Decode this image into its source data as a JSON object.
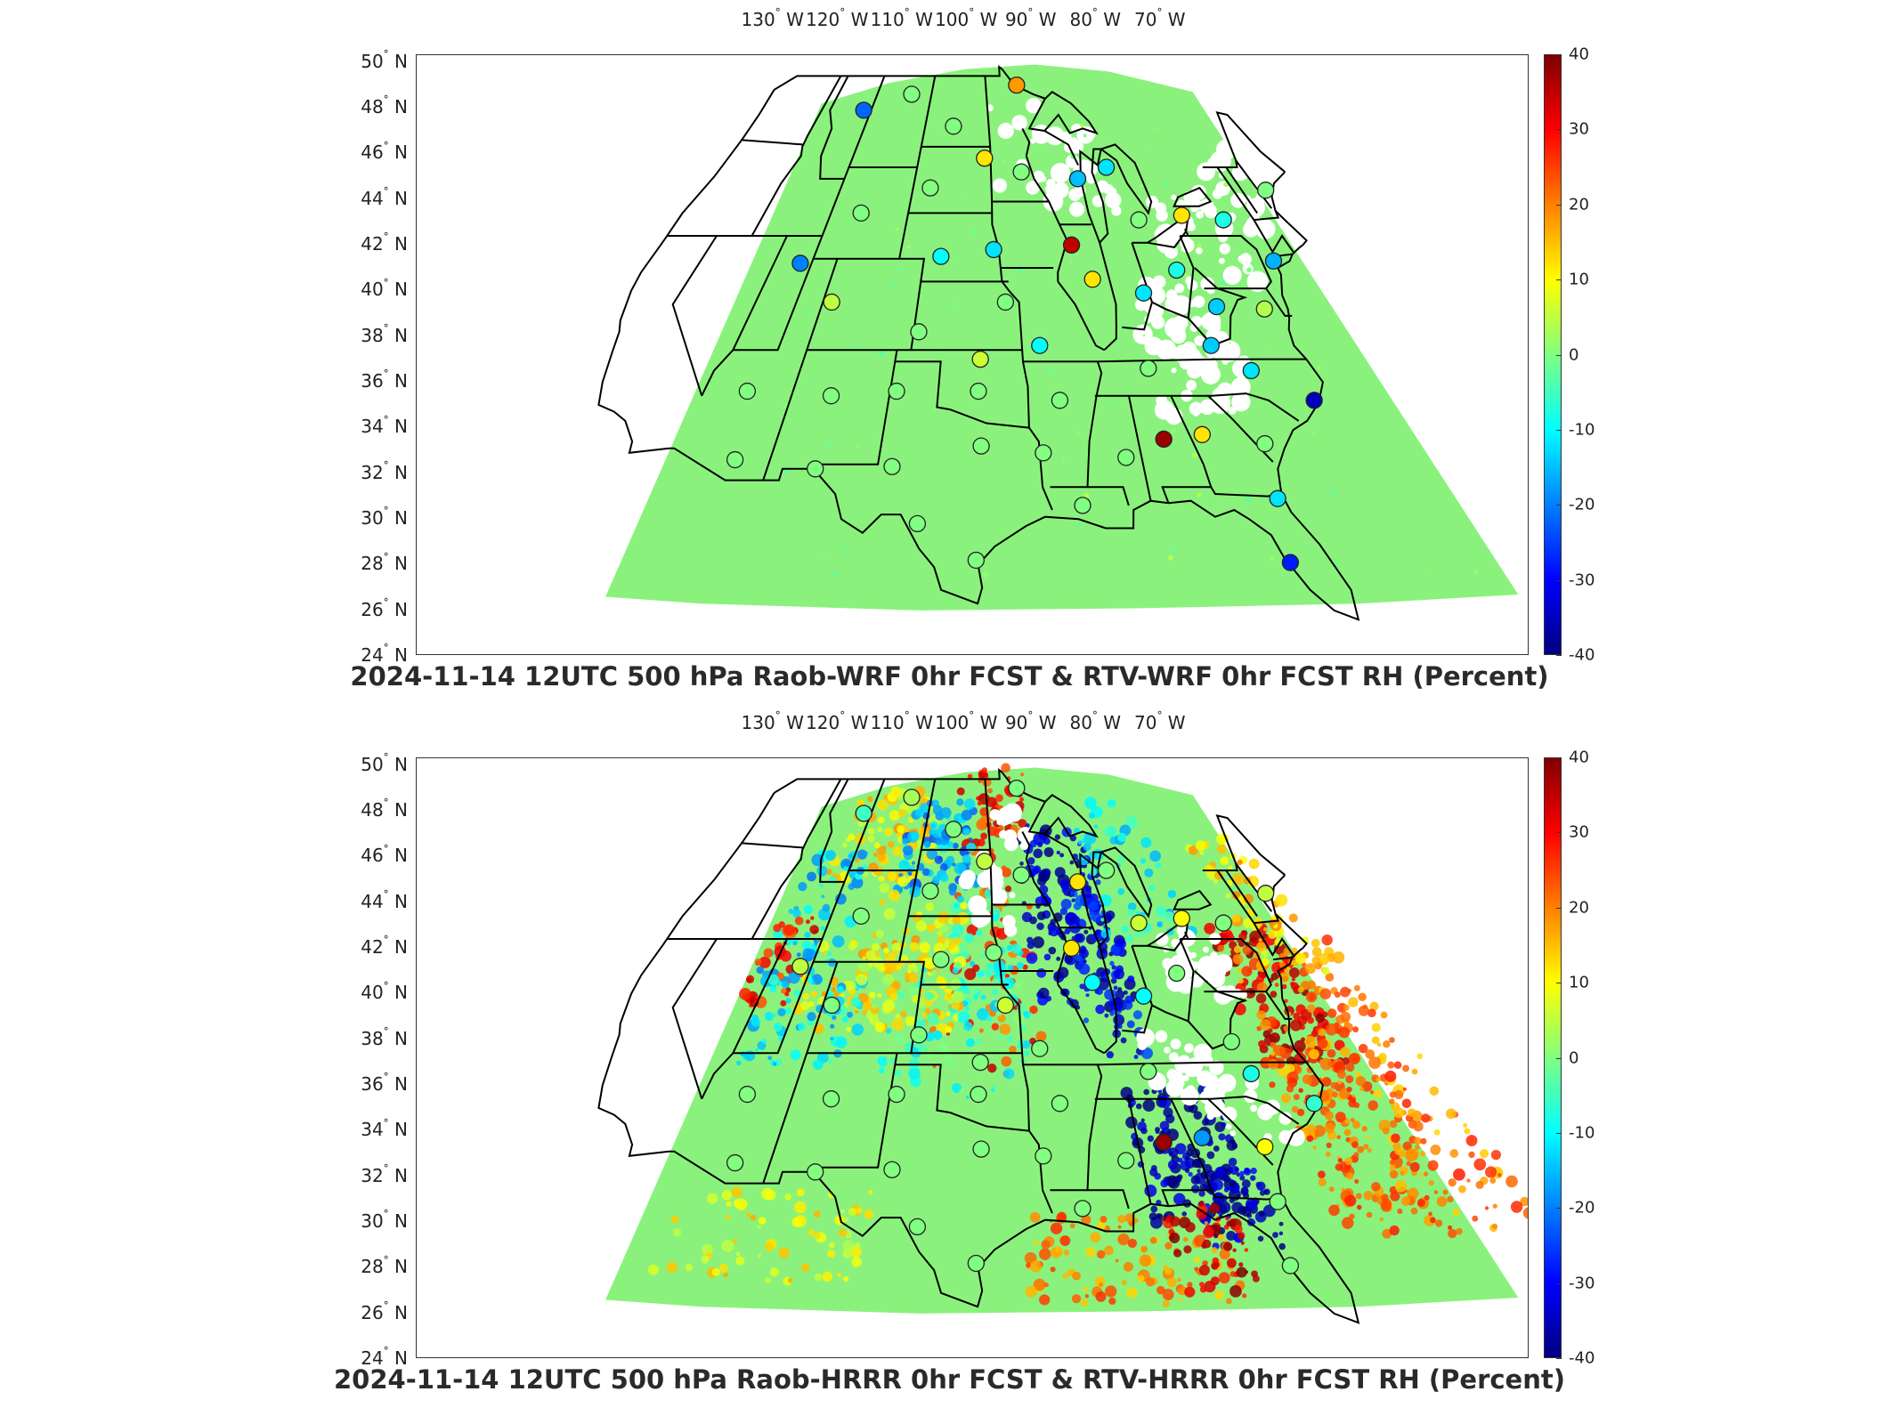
{
  "panels": [
    {
      "title": "2024-11-14 12UTC 500 hPa Raob-WRF 0hr FCST & RTV-WRF 0hr FCST RH (Percent)",
      "field": "smooth",
      "stations": [
        {
          "lon": -111.9,
          "lat": 47.5,
          "value": -22
        },
        {
          "lon": -106.6,
          "lat": 48.2,
          "value": 0
        },
        {
          "lon": -93.0,
          "lat": 48.6,
          "value": 18
        },
        {
          "lon": -100.8,
          "lat": 46.8,
          "value": 0
        },
        {
          "lon": -97.2,
          "lat": 45.4,
          "value": 12
        },
        {
          "lon": -93.5,
          "lat": 44.8,
          "value": 0
        },
        {
          "lon": -102.4,
          "lat": 44.1,
          "value": 0
        },
        {
          "lon": -108.3,
          "lat": 43.0,
          "value": 0
        },
        {
          "lon": -88.0,
          "lat": 44.5,
          "value": -15
        },
        {
          "lon": -84.8,
          "lat": 45.0,
          "value": -12
        },
        {
          "lon": -83.5,
          "lat": 42.7,
          "value": 0
        },
        {
          "lon": -89.9,
          "lat": 41.6,
          "value": 35
        },
        {
          "lon": -88.8,
          "lat": 40.1,
          "value": 12
        },
        {
          "lon": -111.9,
          "lat": 40.8,
          "value": -20
        },
        {
          "lon": -100.7,
          "lat": 41.1,
          "value": -10
        },
        {
          "lon": -96.4,
          "lat": 41.4,
          "value": -12
        },
        {
          "lon": -108.4,
          "lat": 39.1,
          "value": 5
        },
        {
          "lon": -101.7,
          "lat": 37.8,
          "value": 0
        },
        {
          "lon": -95.6,
          "lat": 39.1,
          "value": 0
        },
        {
          "lon": -93.4,
          "lat": 37.2,
          "value": -10
        },
        {
          "lon": -97.4,
          "lat": 36.6,
          "value": 6
        },
        {
          "lon": -86.5,
          "lat": 36.2,
          "value": 0
        },
        {
          "lon": -82.0,
          "lat": 40.5,
          "value": -8
        },
        {
          "lon": -85.2,
          "lat": 39.5,
          "value": -12
        },
        {
          "lon": -80.2,
          "lat": 38.9,
          "value": -14
        },
        {
          "lon": -81.8,
          "lat": 37.2,
          "value": -14
        },
        {
          "lon": -79.9,
          "lat": 36.1,
          "value": -12
        },
        {
          "lon": -76.9,
          "lat": 34.8,
          "value": -35
        },
        {
          "lon": -79.5,
          "lat": 42.9,
          "value": 12
        },
        {
          "lon": -76.0,
          "lat": 42.7,
          "value": -8
        },
        {
          "lon": -73.9,
          "lat": 40.9,
          "value": -16
        },
        {
          "lon": -76.8,
          "lat": 38.8,
          "value": 4
        },
        {
          "lon": -70.3,
          "lat": 44.0,
          "value": 0
        },
        {
          "lon": -111.9,
          "lat": 35.2,
          "value": 0
        },
        {
          "lon": -106.6,
          "lat": 35.0,
          "value": 0
        },
        {
          "lon": -102.6,
          "lat": 35.2,
          "value": 0
        },
        {
          "lon": -97.5,
          "lat": 35.2,
          "value": 0
        },
        {
          "lon": -92.5,
          "lat": 34.8,
          "value": 0
        },
        {
          "lon": -111.0,
          "lat": 32.2,
          "value": 0
        },
        {
          "lon": -106.4,
          "lat": 31.8,
          "value": 0
        },
        {
          "lon": -102.2,
          "lat": 31.9,
          "value": 0
        },
        {
          "lon": -97.3,
          "lat": 32.8,
          "value": 0
        },
        {
          "lon": -93.8,
          "lat": 32.5,
          "value": 0
        },
        {
          "lon": -89.2,
          "lat": 32.3,
          "value": 0
        },
        {
          "lon": -86.8,
          "lat": 33.1,
          "value": 38
        },
        {
          "lon": -84.5,
          "lat": 33.3,
          "value": 12
        },
        {
          "lon": -81.1,
          "lat": 32.9,
          "value": 0
        },
        {
          "lon": -92.0,
          "lat": 30.2,
          "value": 0
        },
        {
          "lon": -81.7,
          "lat": 30.5,
          "value": -12
        },
        {
          "lon": -100.5,
          "lat": 29.4,
          "value": 0
        },
        {
          "lon": -97.5,
          "lat": 27.8,
          "value": 0
        },
        {
          "lon": -82.4,
          "lat": 27.7,
          "value": -28
        }
      ]
    },
    {
      "title": "2024-11-14 12UTC 500 hPa Raob-HRRR 0hr FCST & RTV-HRRR 0hr FCST RH (Percent)",
      "field": "noisy",
      "stations": [
        {
          "lon": -111.9,
          "lat": 47.5,
          "value": -5
        },
        {
          "lon": -106.6,
          "lat": 48.2,
          "value": 3
        },
        {
          "lon": -93.0,
          "lat": 48.6,
          "value": 0
        },
        {
          "lon": -100.8,
          "lat": 46.8,
          "value": 0
        },
        {
          "lon": -97.2,
          "lat": 45.4,
          "value": 5
        },
        {
          "lon": -93.5,
          "lat": 44.8,
          "value": 0
        },
        {
          "lon": -102.4,
          "lat": 44.1,
          "value": 0
        },
        {
          "lon": -108.3,
          "lat": 43.0,
          "value": 0
        },
        {
          "lon": -88.0,
          "lat": 44.5,
          "value": 12
        },
        {
          "lon": -84.8,
          "lat": 45.0,
          "value": 0
        },
        {
          "lon": -83.5,
          "lat": 42.7,
          "value": 6
        },
        {
          "lon": -89.9,
          "lat": 41.6,
          "value": 12
        },
        {
          "lon": -88.8,
          "lat": 40.1,
          "value": -10
        },
        {
          "lon": -111.9,
          "lat": 40.8,
          "value": 5
        },
        {
          "lon": -100.7,
          "lat": 41.1,
          "value": 0
        },
        {
          "lon": -96.4,
          "lat": 41.4,
          "value": 0
        },
        {
          "lon": -108.4,
          "lat": 39.1,
          "value": 0
        },
        {
          "lon": -101.7,
          "lat": 37.8,
          "value": 0
        },
        {
          "lon": -95.6,
          "lat": 39.1,
          "value": 6
        },
        {
          "lon": -93.4,
          "lat": 37.2,
          "value": 0
        },
        {
          "lon": -97.4,
          "lat": 36.6,
          "value": 0
        },
        {
          "lon": -86.5,
          "lat": 36.2,
          "value": 0
        },
        {
          "lon": -82.0,
          "lat": 40.5,
          "value": 0
        },
        {
          "lon": -85.2,
          "lat": 39.5,
          "value": -10
        },
        {
          "lon": -80.2,
          "lat": 37.5,
          "value": 0
        },
        {
          "lon": -79.9,
          "lat": 36.1,
          "value": -8
        },
        {
          "lon": -76.9,
          "lat": 34.8,
          "value": -6
        },
        {
          "lon": -79.5,
          "lat": 42.9,
          "value": 10
        },
        {
          "lon": -76.0,
          "lat": 42.7,
          "value": 0
        },
        {
          "lon": -70.3,
          "lat": 44.0,
          "value": 5
        },
        {
          "lon": -111.9,
          "lat": 35.2,
          "value": 0
        },
        {
          "lon": -106.6,
          "lat": 35.0,
          "value": 0
        },
        {
          "lon": -102.6,
          "lat": 35.2,
          "value": 0
        },
        {
          "lon": -97.5,
          "lat": 35.2,
          "value": 0
        },
        {
          "lon": -92.5,
          "lat": 34.8,
          "value": 0
        },
        {
          "lon": -111.0,
          "lat": 32.2,
          "value": 0
        },
        {
          "lon": -106.4,
          "lat": 31.8,
          "value": 0
        },
        {
          "lon": -102.2,
          "lat": 31.9,
          "value": 0
        },
        {
          "lon": -97.3,
          "lat": 32.8,
          "value": 0
        },
        {
          "lon": -93.8,
          "lat": 32.5,
          "value": 0
        },
        {
          "lon": -89.2,
          "lat": 32.3,
          "value": 0
        },
        {
          "lon": -86.8,
          "lat": 33.1,
          "value": 38
        },
        {
          "lon": -84.5,
          "lat": 33.3,
          "value": -18
        },
        {
          "lon": -81.1,
          "lat": 32.9,
          "value": 10
        },
        {
          "lon": -92.0,
          "lat": 30.2,
          "value": 0
        },
        {
          "lon": -81.7,
          "lat": 30.5,
          "value": 0
        },
        {
          "lon": -100.5,
          "lat": 29.4,
          "value": 0
        },
        {
          "lon": -97.5,
          "lat": 27.8,
          "value": 0
        },
        {
          "lon": -82.4,
          "lat": 27.7,
          "value": 0
        }
      ]
    }
  ],
  "axes": {
    "lon_ticks": [
      -130,
      -120,
      -110,
      -100,
      -90,
      -80,
      -70
    ],
    "lon_labels": [
      "130",
      "120",
      "110",
      "100",
      "90",
      "80",
      "70"
    ],
    "lon_suffix": "W",
    "lat_ticks": [
      50,
      48,
      46,
      44,
      42,
      40,
      38,
      36,
      34,
      32,
      30,
      28,
      26,
      24
    ],
    "lat_labels": [
      "50",
      "48",
      "46",
      "44",
      "42",
      "40",
      "38",
      "36",
      "34",
      "32",
      "30",
      "28",
      "26",
      "24"
    ],
    "lat_suffix": "N",
    "lon_range": [
      -130,
      -70
    ],
    "lat_range": [
      24,
      50
    ]
  },
  "colorbar": {
    "range": [
      -40,
      40
    ],
    "tick_values": [
      40,
      30,
      20,
      10,
      0,
      -10,
      -20,
      -30,
      -40
    ],
    "tick_labels": [
      "40",
      "30",
      "20",
      "10",
      "0",
      "-10",
      "-20",
      "-30",
      "-40"
    ],
    "colormap": "jet"
  },
  "colors": {
    "background_field": "#8af27c",
    "border_line": "#000000",
    "frame": "#333333"
  }
}
